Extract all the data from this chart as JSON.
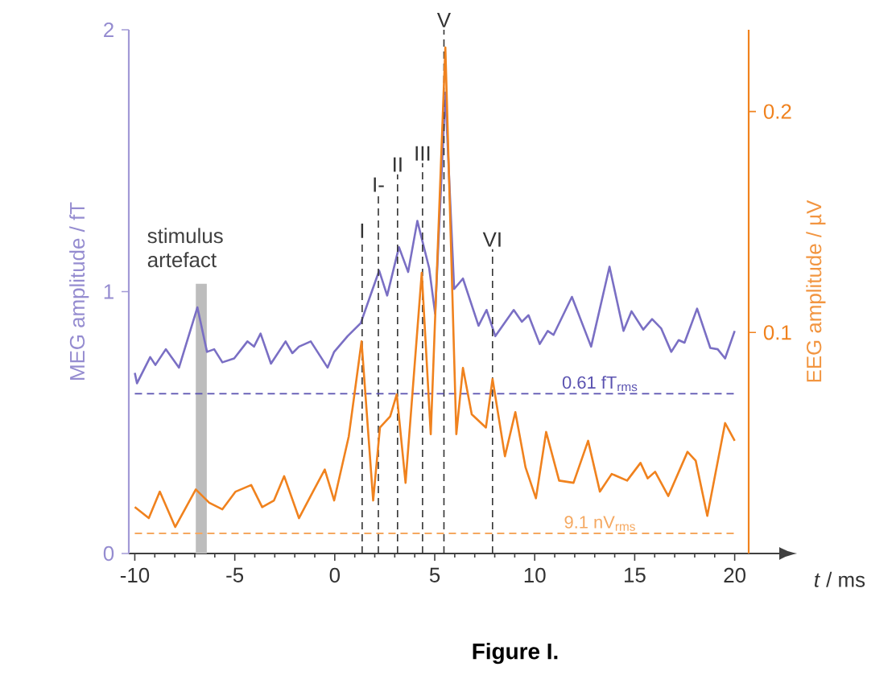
{
  "chart_data": {
    "type": "line",
    "xlabel": "*t* / ms",
    "ylabel": "MEG amplitude / fT",
    "y2label": "EEG amplitude / µV",
    "xlim": [
      -10.3,
      20.7
    ],
    "xticks": [
      -10,
      -5,
      0,
      5,
      10,
      15,
      20
    ],
    "ylim": [
      0,
      2
    ],
    "yticks": [
      0,
      1,
      2
    ],
    "y2lim": [
      0,
      0.237
    ],
    "y2ticks": [
      0.1,
      0.2
    ],
    "series": [
      {
        "color": "#7a6fc4",
        "x": [
          -10,
          -9.89,
          -9.23,
          -8.97,
          -8.45,
          -7.79,
          -6.87,
          -6.39,
          -6.03,
          -5.62,
          -5.03,
          -4.37,
          -4.04,
          -3.71,
          -3.19,
          -2.46,
          -2.12,
          -1.79,
          -1.2,
          -0.36,
          -0.03,
          0.64,
          1.3,
          1.85,
          2.22,
          2.62,
          3.21,
          3.67,
          4.13,
          4.72,
          5.02,
          5.53,
          5.97,
          6.41,
          7.19,
          7.59,
          8.03,
          8.95,
          9.36,
          9.69,
          10.25,
          10.65,
          10.94,
          11.86,
          12.82,
          13.74,
          14.44,
          14.84,
          15.43,
          15.87,
          16.32,
          16.83,
          17.2,
          17.49,
          18.12,
          18.78,
          19.15,
          19.52,
          20
        ],
        "values": [
          0.69,
          0.65,
          0.75,
          0.72,
          0.78,
          0.71,
          0.94,
          0.77,
          0.78,
          0.73,
          0.745,
          0.81,
          0.79,
          0.84,
          0.725,
          0.81,
          0.765,
          0.79,
          0.81,
          0.71,
          0.77,
          0.83,
          0.88,
          1.0,
          1.08,
          0.985,
          1.17,
          1.075,
          1.27,
          1.09,
          0.915,
          1.76,
          1.01,
          1.05,
          0.87,
          0.93,
          0.83,
          0.93,
          0.885,
          0.91,
          0.8,
          0.85,
          0.835,
          0.98,
          0.79,
          1.095,
          0.85,
          0.925,
          0.855,
          0.895,
          0.86,
          0.77,
          0.815,
          0.805,
          0.935,
          0.785,
          0.78,
          0.745,
          0.85
        ]
      },
      {
        "color": "#f0821e",
        "axis": "y2",
        "x": [
          -10,
          -9.3,
          -8.75,
          -7.98,
          -6.95,
          -6.28,
          -5.62,
          -4.96,
          -4.18,
          -3.63,
          -3.04,
          -2.53,
          -1.79,
          -1.09,
          -0.5,
          -0.03,
          0.7,
          1.34,
          1.92,
          2.26,
          2.77,
          3.1,
          3.54,
          4.35,
          4.8,
          5.53,
          6.08,
          6.41,
          6.85,
          7.56,
          7.89,
          8.51,
          9.03,
          9.54,
          10.06,
          10.57,
          11.22,
          11.94,
          12.67,
          13.26,
          13.85,
          14.62,
          15.29,
          15.65,
          16.02,
          16.68,
          17.64,
          18.05,
          18.63,
          19.52,
          20
        ],
        "values": [
          0.021,
          0.016,
          0.028,
          0.012,
          0.029,
          0.023,
          0.02,
          0.028,
          0.031,
          0.021,
          0.024,
          0.035,
          0.016,
          0.028,
          0.038,
          0.024,
          0.053,
          0.096,
          0.024,
          0.057,
          0.062,
          0.072,
          0.032,
          0.127,
          0.054,
          0.229,
          0.054,
          0.084,
          0.063,
          0.057,
          0.079,
          0.044,
          0.064,
          0.039,
          0.025,
          0.055,
          0.033,
          0.032,
          0.051,
          0.028,
          0.036,
          0.033,
          0.041,
          0.034,
          0.037,
          0.026,
          0.046,
          0.042,
          0.017,
          0.059,
          0.051
        ]
      }
    ],
    "ref_lines": [
      {
        "axis": "x",
        "value": 1.37,
        "label": "I",
        "color": "#333333",
        "line_style": "dashed"
      },
      {
        "axis": "x",
        "value": 2.18,
        "label": "I-",
        "color": "#333333",
        "line_style": "dashed"
      },
      {
        "axis": "x",
        "value": 3.14,
        "label": "II",
        "color": "#333333",
        "line_style": "dashed"
      },
      {
        "axis": "x",
        "value": 4.39,
        "label": "III",
        "color": "#333333",
        "line_style": "dashed"
      },
      {
        "axis": "x",
        "value": 5.46,
        "label": "V",
        "color": "#333333",
        "line_style": "dashed"
      },
      {
        "axis": "x",
        "value": 7.89,
        "label": "VI",
        "color": "#333333",
        "line_style": "dashed"
      },
      {
        "axis": "y",
        "value": 0.61,
        "label": "0.61 fT$_{rms}$",
        "color": "#5a52b0",
        "line_style": "dashed"
      },
      {
        "axis": "y2",
        "value": 0.0091,
        "label": "9.1 nV$_{rms}$",
        "color": "#f5a860",
        "line_style": "dashed"
      }
    ],
    "bands": [
      {
        "axis": "x",
        "from": -6.95,
        "to": -6.4,
        "label": "stimulus artefact",
        "color": "#bdbdbd"
      }
    ],
    "annotations": [
      "Figure I."
    ]
  }
}
